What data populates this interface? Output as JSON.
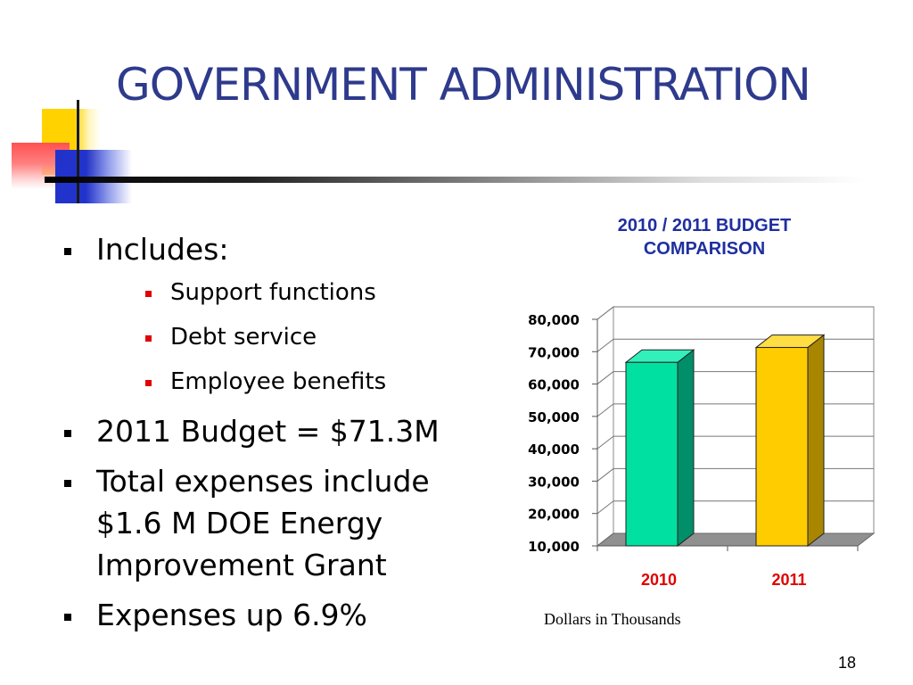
{
  "slide": {
    "title": "GOVERNMENT ADMINISTRATION",
    "page_number": "18"
  },
  "bullets": {
    "includes_label": "Includes:",
    "sub_items": [
      "Support functions",
      "Debt service",
      "Employee benefits"
    ],
    "budget": "2011 Budget = $71.3M",
    "expenses_line1": "Total expenses include",
    "expenses_line2": "$1.6 M DOE Energy",
    "expenses_line3": "Improvement Grant",
    "expenses_up": "Expenses up 6.9%"
  },
  "chart_title_line1": "2010 / 2011 BUDGET",
  "chart_title_line2": "COMPARISON",
  "chart_note": "Dollars in Thousands",
  "colors": {
    "title": "#2e3a8c",
    "chart_title": "#1f2fa0",
    "category_label": "#e00000",
    "bar_2010": "#00e0a0",
    "bar_2011": "#ffcc00"
  },
  "chart_data": {
    "type": "bar",
    "title": "2010 / 2011 BUDGET COMPARISON",
    "categories": [
      "2010",
      "2011"
    ],
    "values": [
      66700,
      71300
    ],
    "ylim": [
      10000,
      80000
    ],
    "yticks": [
      "10,000",
      "20,000",
      "30,000",
      "40,000",
      "50,000",
      "60,000",
      "70,000",
      "80,000"
    ],
    "ytick_values": [
      10000,
      20000,
      30000,
      40000,
      50000,
      60000,
      70000,
      80000
    ],
    "grid": true,
    "style": "3d"
  }
}
